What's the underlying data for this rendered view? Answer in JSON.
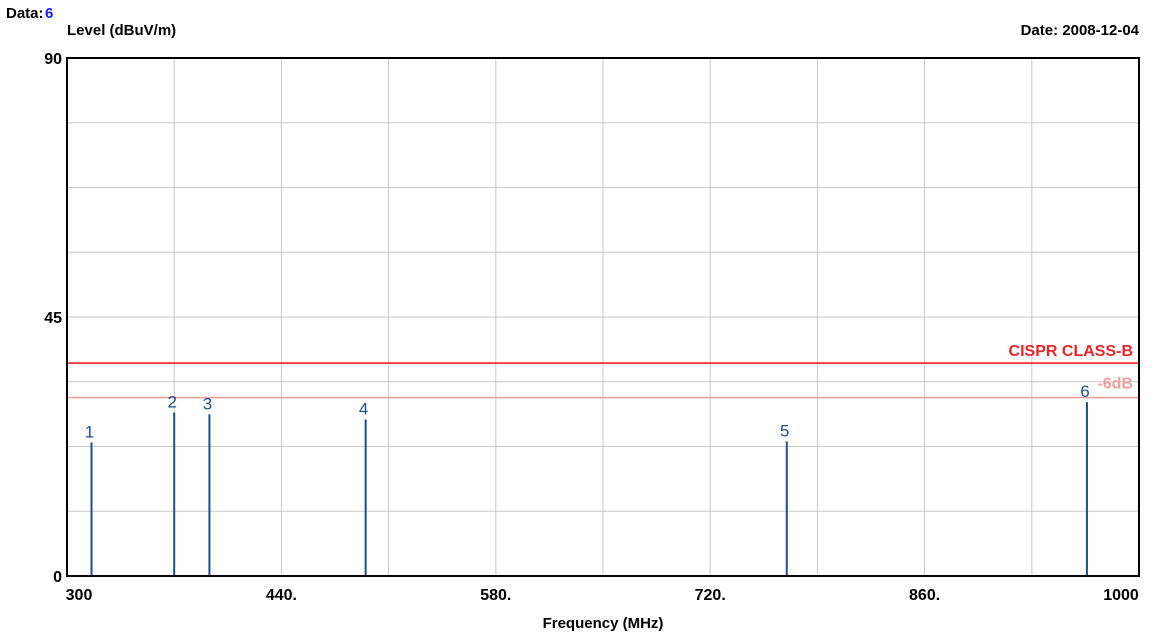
{
  "header": {
    "data_label": "Data:",
    "data_value": "6",
    "date_text": "Date: 2008-12-04"
  },
  "chart_data": {
    "type": "bar",
    "ylabel": "Level (dBuV/m)",
    "xlabel": "Frequency (MHz)",
    "xlim": [
      300,
      1000
    ],
    "ylim": [
      0,
      90
    ],
    "x_ticks": [
      300,
      440,
      580,
      720,
      860,
      1000
    ],
    "x_tick_labels": [
      "300",
      "440.",
      "580.",
      "720.",
      "860.",
      "1000"
    ],
    "y_ticks": [
      0,
      45,
      90
    ],
    "y_tick_labels": [
      "0",
      "45",
      "90"
    ],
    "grid": true,
    "limit_lines": [
      {
        "label": "CISPR CLASS-B",
        "value": 37,
        "color": "#e8262a"
      },
      {
        "label": "-6dB",
        "value": 31,
        "color": "#f0a0a0"
      }
    ],
    "series": [
      {
        "color": "#1f4e8c",
        "points": [
          {
            "label": "1",
            "x": 316,
            "y": 23.2
          },
          {
            "label": "2",
            "x": 370,
            "y": 28.4
          },
          {
            "label": "3",
            "x": 393,
            "y": 28.1
          },
          {
            "label": "4",
            "x": 495,
            "y": 27.2
          },
          {
            "label": "5",
            "x": 770,
            "y": 23.4
          },
          {
            "label": "6",
            "x": 966,
            "y": 30.2
          }
        ]
      }
    ]
  }
}
